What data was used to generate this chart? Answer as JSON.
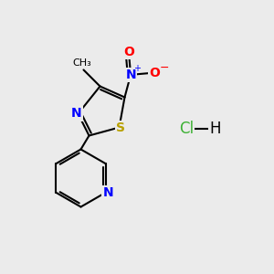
{
  "background_color": "#ebebeb",
  "line_color": "#000000",
  "atom_colors": {
    "N": "#0000ff",
    "O": "#ff0000",
    "S": "#b8a000",
    "C": "#000000",
    "Cl": "#3cb033",
    "H": "#000000"
  },
  "figsize": [
    3.0,
    3.0
  ],
  "dpi": 100,
  "lw": 1.5,
  "fs": 10,
  "fs_small": 9
}
